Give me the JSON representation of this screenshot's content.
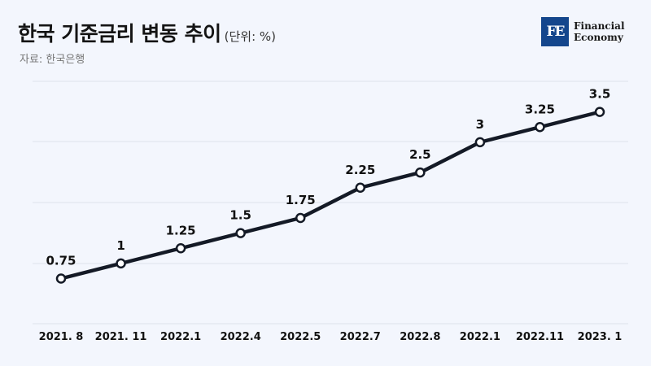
{
  "header": {
    "title": "한국 기준금리 변동 추이",
    "unit": "(단위: %)",
    "source": "자료: 한국은행"
  },
  "logo": {
    "mark": "FE",
    "line1": "Financial",
    "line2": "Economy",
    "color": "#14468c"
  },
  "chart_data": {
    "type": "line",
    "title": "한국 기준금리 변동 추이",
    "ylabel": "",
    "xlabel": "",
    "categories": [
      "2021. 8",
      "2021. 11",
      "2022.1",
      "2022.4",
      "2022.5",
      "2022.7",
      "2022.8",
      "2022.1",
      "2022.11",
      "2023. 1"
    ],
    "series": [
      {
        "values": [
          0.75,
          1,
          1.25,
          1.5,
          1.75,
          2.25,
          2.5,
          3,
          3.25,
          3.5
        ]
      }
    ],
    "data_labels": [
      "0.75",
      "1",
      "1.25",
      "1.5",
      "1.75",
      "2.25",
      "2.5",
      "3",
      "3.25",
      "3.5"
    ],
    "line_color": "#141a26",
    "grid": true
  }
}
